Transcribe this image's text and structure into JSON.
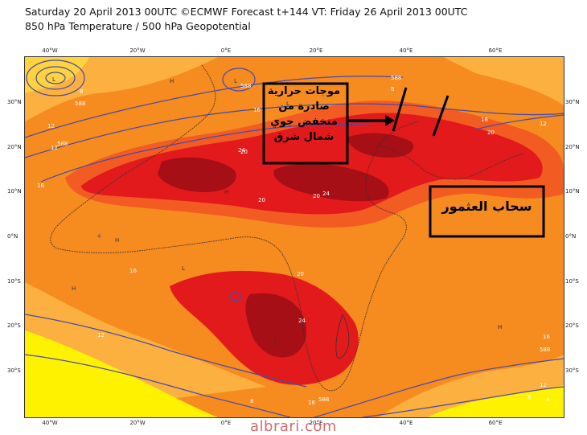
{
  "header": {
    "line1": "Saturday 20 April 2013 00UTC ©ECMWF Forecast t+144 VT: Friday 26 April 2013 00UTC",
    "line2": "850 hPa Temperature / 500 hPa Geopotential"
  },
  "axes": {
    "lon_top": [
      "40°W",
      "20°W",
      "0°E",
      "20°E",
      "40°E",
      "60°E"
    ],
    "lon_bottom": [
      "40°W",
      "20°W",
      "0°E",
      "20°E",
      "40°E",
      "60°E"
    ],
    "lat_left": [
      "30°N",
      "20°N",
      "10°N",
      "0°N",
      "10°S",
      "20°S",
      "30°S"
    ],
    "lat_right": [
      "30°N",
      "20°N",
      "10°N",
      "0°N",
      "10°S",
      "20°S",
      "30°S"
    ]
  },
  "contour_labels": [
    "588",
    "588",
    "588",
    "588",
    "588",
    "588",
    "12",
    "12",
    "12",
    "12",
    "12",
    "16",
    "16",
    "16",
    "16",
    "16",
    "16",
    "20",
    "20",
    "20",
    "20",
    "20",
    "24",
    "24",
    "24",
    "8",
    "8",
    "8",
    "8",
    "4",
    "4"
  ],
  "pressure_marks": [
    "H",
    "L"
  ],
  "annotations": {
    "box1_text": "موجات حرارية صادرة من منخفض جوي شمال شرق",
    "box2_text": "سحاب العثمور"
  },
  "colors": {
    "hot_dark": "#a50f15",
    "hot": "#e31a1c",
    "warm": "#f25c23",
    "orange": "#f68b1f",
    "light_orange": "#fbb040",
    "yellow": "#fff200",
    "contour": "#4a4aa6"
  },
  "watermark": "albrari.com"
}
